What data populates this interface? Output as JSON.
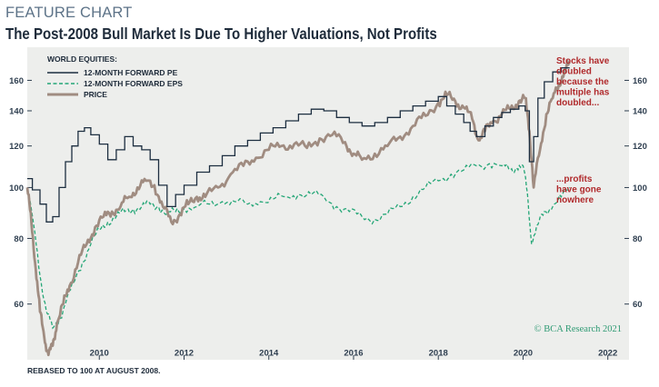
{
  "header": {
    "kicker": "FEATURE CHART",
    "title": "The Post-2008 Bull Market Is Due To Higher Valuations, Not Profits"
  },
  "footnote": "REBASED TO 100 AT AUGUST 2008.",
  "credit": "© BCA Research 2021",
  "colors": {
    "pe": "#1d2e40",
    "eps": "#23a676",
    "price": "#a08c81",
    "annotation": "#b02a2c",
    "panel": "#edeeec"
  },
  "chart_data": {
    "type": "line",
    "title": "The Post-2008 Bull Market Is Due To Higher Valuations, Not Profits",
    "y_scale": "log",
    "ylim": [
      47,
      185
    ],
    "xlim": [
      2008.3,
      2022.5
    ],
    "y_ticks": [
      60,
      80,
      100,
      120,
      140,
      160
    ],
    "x_ticks": [
      2010,
      2012,
      2014,
      2016,
      2018,
      2020,
      2022
    ],
    "legend_title": "WORLD EQUITIES:",
    "legend_position": "top-left",
    "series": [
      {
        "name": "12-MONTH FORWARD PE",
        "style": "step-solid",
        "x": [
          2008.3,
          2008.42,
          2008.6,
          2008.75,
          2008.9,
          2009.05,
          2009.2,
          2009.35,
          2009.5,
          2009.65,
          2009.8,
          2010.0,
          2010.2,
          2010.4,
          2010.6,
          2010.8,
          2011.0,
          2011.2,
          2011.4,
          2011.6,
          2011.8,
          2012.0,
          2012.3,
          2012.6,
          2012.9,
          2013.2,
          2013.5,
          2013.8,
          2014.1,
          2014.4,
          2014.7,
          2015.0,
          2015.3,
          2015.6,
          2015.9,
          2016.2,
          2016.5,
          2016.8,
          2017.1,
          2017.4,
          2017.7,
          2018.0,
          2018.2,
          2018.4,
          2018.6,
          2018.75,
          2018.9,
          2019.1,
          2019.3,
          2019.5,
          2019.7,
          2019.9,
          2020.05,
          2020.15,
          2020.25,
          2020.35,
          2020.5,
          2020.7,
          2020.9,
          2021.1
        ],
        "values": [
          104,
          99,
          93,
          86,
          88,
          100,
          112,
          120,
          128,
          130,
          126,
          121,
          113,
          118,
          125,
          120,
          118,
          113,
          101,
          92,
          97,
          101,
          107,
          110,
          115,
          120,
          123,
          127,
          130,
          134,
          138,
          141,
          140,
          136,
          133,
          131,
          133,
          136,
          140,
          143,
          146,
          149,
          143,
          138,
          133,
          128,
          125,
          131,
          136,
          139,
          141,
          143,
          140,
          112,
          125,
          148,
          159,
          166,
          169,
          169
        ]
      },
      {
        "name": "12-MONTH FORWARD EPS",
        "style": "dashed",
        "x": [
          2008.3,
          2008.45,
          2008.6,
          2008.75,
          2008.9,
          2009.05,
          2009.2,
          2009.4,
          2009.6,
          2009.8,
          2010.0,
          2010.2,
          2010.4,
          2010.6,
          2010.8,
          2011.0,
          2011.2,
          2011.4,
          2011.6,
          2011.8,
          2012.0,
          2012.3,
          2012.6,
          2012.9,
          2013.2,
          2013.5,
          2013.8,
          2014.1,
          2014.4,
          2014.7,
          2015.0,
          2015.3,
          2015.6,
          2015.9,
          2016.2,
          2016.5,
          2016.8,
          2017.1,
          2017.4,
          2017.7,
          2018.0,
          2018.3,
          2018.6,
          2018.9,
          2019.2,
          2019.5,
          2019.7,
          2019.85,
          2020.0,
          2020.1,
          2020.2,
          2020.35,
          2020.5,
          2020.7,
          2020.9,
          2021.1
        ],
        "values": [
          99,
          85,
          68,
          58,
          54,
          56,
          60,
          66,
          72,
          78,
          83,
          86,
          88,
          90,
          91,
          92,
          93,
          92,
          89,
          90,
          91,
          92,
          93,
          94,
          94,
          93,
          94,
          95,
          96,
          97,
          97,
          96,
          92,
          90,
          88,
          87,
          89,
          92,
          96,
          100,
          103,
          106,
          108,
          110,
          111,
          110,
          108,
          109,
          110,
          98,
          78,
          85,
          90,
          92,
          96,
          100
        ]
      },
      {
        "name": "PRICE",
        "style": "solid-thick",
        "x": [
          2008.3,
          2008.4,
          2008.5,
          2008.6,
          2008.7,
          2008.8,
          2008.9,
          2009.0,
          2009.15,
          2009.3,
          2009.5,
          2009.7,
          2009.9,
          2010.1,
          2010.3,
          2010.5,
          2010.7,
          2010.9,
          2011.1,
          2011.3,
          2011.5,
          2011.7,
          2011.9,
          2012.1,
          2012.3,
          2012.5,
          2012.8,
          2013.1,
          2013.4,
          2013.7,
          2014.0,
          2014.3,
          2014.6,
          2014.9,
          2015.2,
          2015.5,
          2015.8,
          2016.0,
          2016.2,
          2016.5,
          2016.8,
          2017.1,
          2017.4,
          2017.7,
          2018.0,
          2018.2,
          2018.4,
          2018.6,
          2018.8,
          2018.95,
          2019.1,
          2019.3,
          2019.5,
          2019.7,
          2019.9,
          2020.05,
          2020.15,
          2020.25,
          2020.4,
          2020.55,
          2020.7,
          2020.85,
          2021.0,
          2021.1
        ],
        "values": [
          100,
          85,
          70,
          58,
          52,
          48,
          50,
          55,
          60,
          65,
          72,
          78,
          84,
          88,
          90,
          92,
          96,
          100,
          103,
          101,
          92,
          86,
          89,
          93,
          96,
          96,
          100,
          106,
          110,
          114,
          118,
          120,
          121,
          119,
          124,
          126,
          122,
          116,
          113,
          116,
          120,
          125,
          131,
          137,
          145,
          150,
          146,
          142,
          135,
          123,
          128,
          134,
          138,
          141,
          146,
          148,
          128,
          100,
          118,
          138,
          148,
          158,
          168,
          172
        ]
      }
    ],
    "annotations": [
      {
        "lines": [
          "Stocks have",
          "doubled",
          "because the",
          "multiple has",
          "doubled..."
        ],
        "anchor": "upper-right"
      },
      {
        "lines": [
          "...profits",
          "have gone",
          "nowhere"
        ],
        "anchor": "middle-right"
      }
    ]
  }
}
